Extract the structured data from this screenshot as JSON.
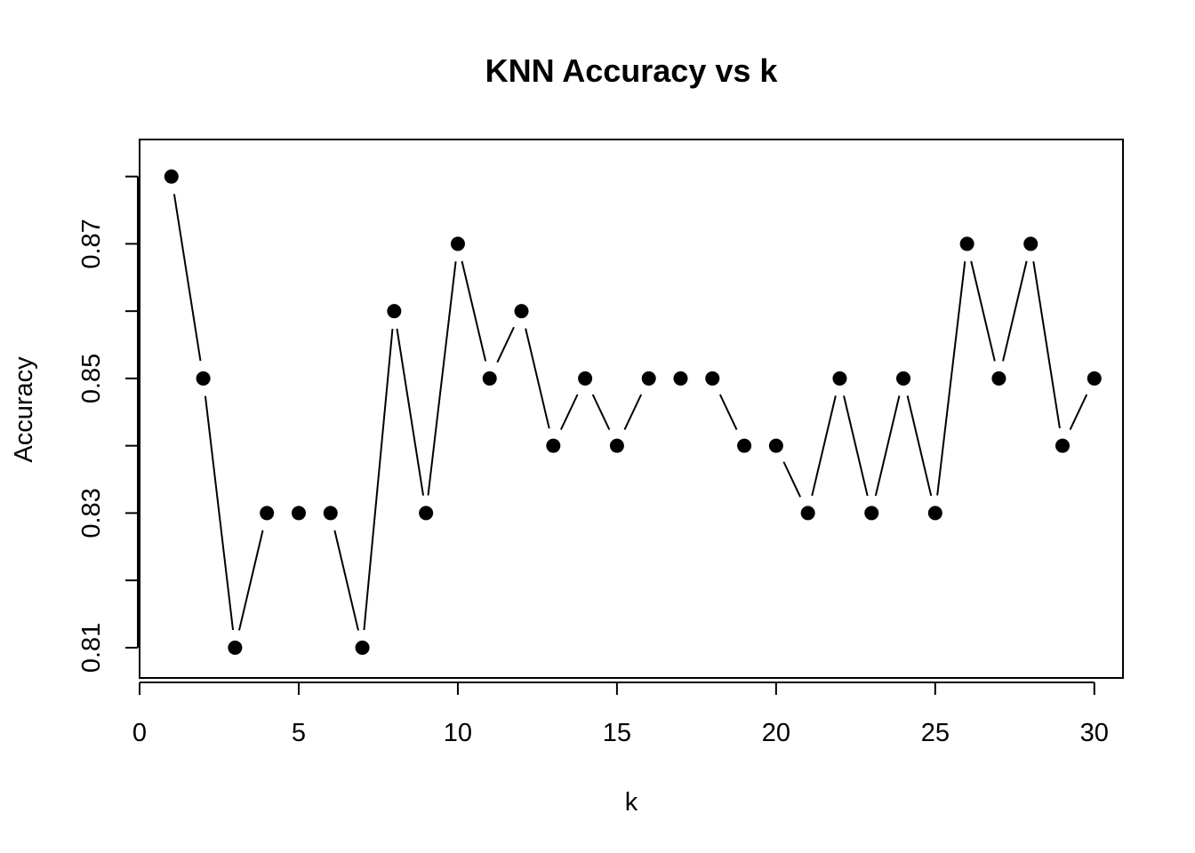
{
  "chart_data": {
    "type": "line",
    "title": "KNN Accuracy vs k",
    "xlabel": "k",
    "ylabel": "Accuracy",
    "x": [
      1,
      2,
      3,
      4,
      5,
      6,
      7,
      8,
      9,
      10,
      11,
      12,
      13,
      14,
      15,
      16,
      17,
      18,
      19,
      20,
      21,
      22,
      23,
      24,
      25,
      26,
      27,
      28,
      29,
      30
    ],
    "series": [
      {
        "values": [
          0.88,
          0.85,
          0.81,
          0.83,
          0.83,
          0.83,
          0.81,
          0.86,
          0.83,
          0.87,
          0.85,
          0.86,
          0.84,
          0.85,
          0.84,
          0.85,
          0.85,
          0.85,
          0.84,
          0.84,
          0.83,
          0.85,
          0.83,
          0.85,
          0.83,
          0.87,
          0.85,
          0.87,
          0.84,
          0.85
        ],
        "style": "both (points connected by lines with gaps)",
        "color": "#000000",
        "marker": "filled-circle"
      }
    ],
    "xlim": [
      0,
      30.9
    ],
    "ylim": [
      0.8055,
      0.8855
    ],
    "x_ticks": [
      0,
      5,
      10,
      15,
      20,
      25,
      30
    ],
    "x_tick_labels": [
      "0",
      "5",
      "10",
      "15",
      "20",
      "25",
      "30"
    ],
    "y_ticks": [
      0.81,
      0.82,
      0.83,
      0.84,
      0.85,
      0.86,
      0.87,
      0.88
    ],
    "y_tick_labels": [
      "0.81",
      "0.83",
      "0.85",
      "0.87"
    ],
    "y_tick_labels_at": [
      0.81,
      0.83,
      0.85,
      0.87
    ],
    "grid": false,
    "legend": "none",
    "box": true
  }
}
